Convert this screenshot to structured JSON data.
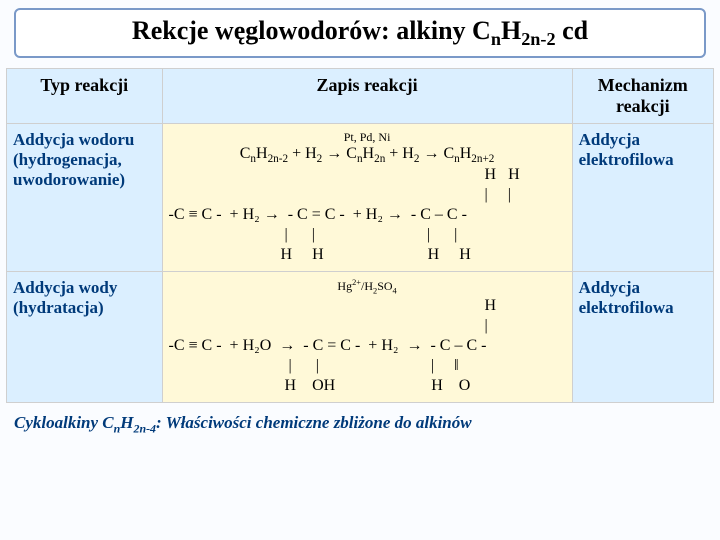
{
  "title": {
    "prefix": "Rekcje węglowodorów: alkiny  C",
    "sub1": "n",
    "mid": "H",
    "sub2": "2n-2",
    "suffix": " cd"
  },
  "headers": {
    "type": "Typ reakcji",
    "reaction": "Zapis reakcji",
    "mechanism": "Mechanizm reakcji"
  },
  "row1": {
    "type": "Addycja wodoru (hydrogenacja, uwodorowanie)",
    "catalyst": "Pt, Pd, Ni",
    "eq_p1": "C",
    "eq_s1": "n",
    "eq_p2": "H",
    "eq_s2": "2n-2",
    "eq_p3": " + H",
    "eq_s3": "2",
    "eq_arr1": " → ",
    "eq_p4": "C",
    "eq_s4": "n",
    "eq_p5": "H",
    "eq_s5": "2n",
    "eq_p6": " + H",
    "eq_s6": "2",
    "eq_arr2": " → ",
    "eq_p7": "C",
    "eq_s7": "n",
    "eq_p8": "H",
    "eq_s8": "2n+2",
    "struct": "                                                                               H   H\n                                                                               |     |\n-C ≡ C -  + H₂ →  - C = C -  + H₂ →  - C – C -\n                             |      |                            |      |\n                            H     H                          H     H",
    "mechanism": "Addycja elektrofilowa"
  },
  "row2": {
    "type": "Addycja wody (hydratacja)",
    "catalyst_a": "Hg",
    "catalyst_sup": "2+",
    "catalyst_b": "/H",
    "catalyst_s1": "2",
    "catalyst_c": "SO",
    "catalyst_s2": "4",
    "struct": "                                                                               H\n                                                                               |\n-C ≡ C -  + H₂O  →  - C = C -  + H₂  →  - C – C -\n                              |      |                            |     ‖\n                             H    OH                        H    O",
    "mechanism": "Addycja elektrofilowa"
  },
  "footnote": {
    "p1": "Cykloalkiny C",
    "s1": "n",
    "p2": "H",
    "s2": "2n-4",
    "p3": ":  Właściwości chemiczne zbliżone do alkinów"
  }
}
